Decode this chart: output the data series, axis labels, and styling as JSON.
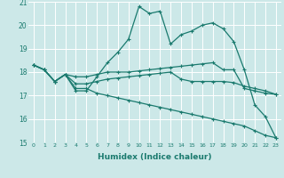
{
  "xlabel": "Humidex (Indice chaleur)",
  "bg_color": "#cce8e8",
  "line_color": "#1a7a6e",
  "grid_color": "#ffffff",
  "xlim": [
    -0.5,
    23.5
  ],
  "ylim": [
    15,
    21
  ],
  "yticks": [
    15,
    16,
    17,
    18,
    19,
    20,
    21
  ],
  "xticks": [
    0,
    1,
    2,
    3,
    4,
    5,
    6,
    7,
    8,
    9,
    10,
    11,
    12,
    13,
    14,
    15,
    16,
    17,
    18,
    19,
    20,
    21,
    22,
    23
  ],
  "series": [
    [
      18.3,
      18.1,
      17.6,
      17.9,
      17.2,
      17.2,
      17.8,
      18.4,
      18.85,
      19.4,
      20.8,
      20.5,
      20.6,
      19.2,
      19.6,
      19.75,
      20.0,
      20.1,
      19.85,
      19.3,
      18.1,
      16.6,
      16.1,
      15.2
    ],
    [
      18.3,
      18.1,
      17.6,
      17.9,
      17.8,
      17.8,
      17.9,
      18.0,
      18.0,
      18.0,
      18.05,
      18.1,
      18.15,
      18.2,
      18.25,
      18.3,
      18.35,
      18.4,
      18.1,
      18.1,
      17.3,
      17.2,
      17.1,
      17.05
    ],
    [
      18.3,
      18.1,
      17.6,
      17.9,
      17.5,
      17.5,
      17.6,
      17.7,
      17.75,
      17.8,
      17.85,
      17.9,
      17.95,
      18.0,
      17.7,
      17.6,
      17.6,
      17.6,
      17.6,
      17.55,
      17.4,
      17.3,
      17.2,
      17.05
    ],
    [
      18.3,
      18.1,
      17.6,
      17.9,
      17.3,
      17.3,
      17.1,
      17.0,
      16.9,
      16.8,
      16.7,
      16.6,
      16.5,
      16.4,
      16.3,
      16.2,
      16.1,
      16.0,
      15.9,
      15.8,
      15.7,
      15.5,
      15.3,
      15.2
    ]
  ]
}
